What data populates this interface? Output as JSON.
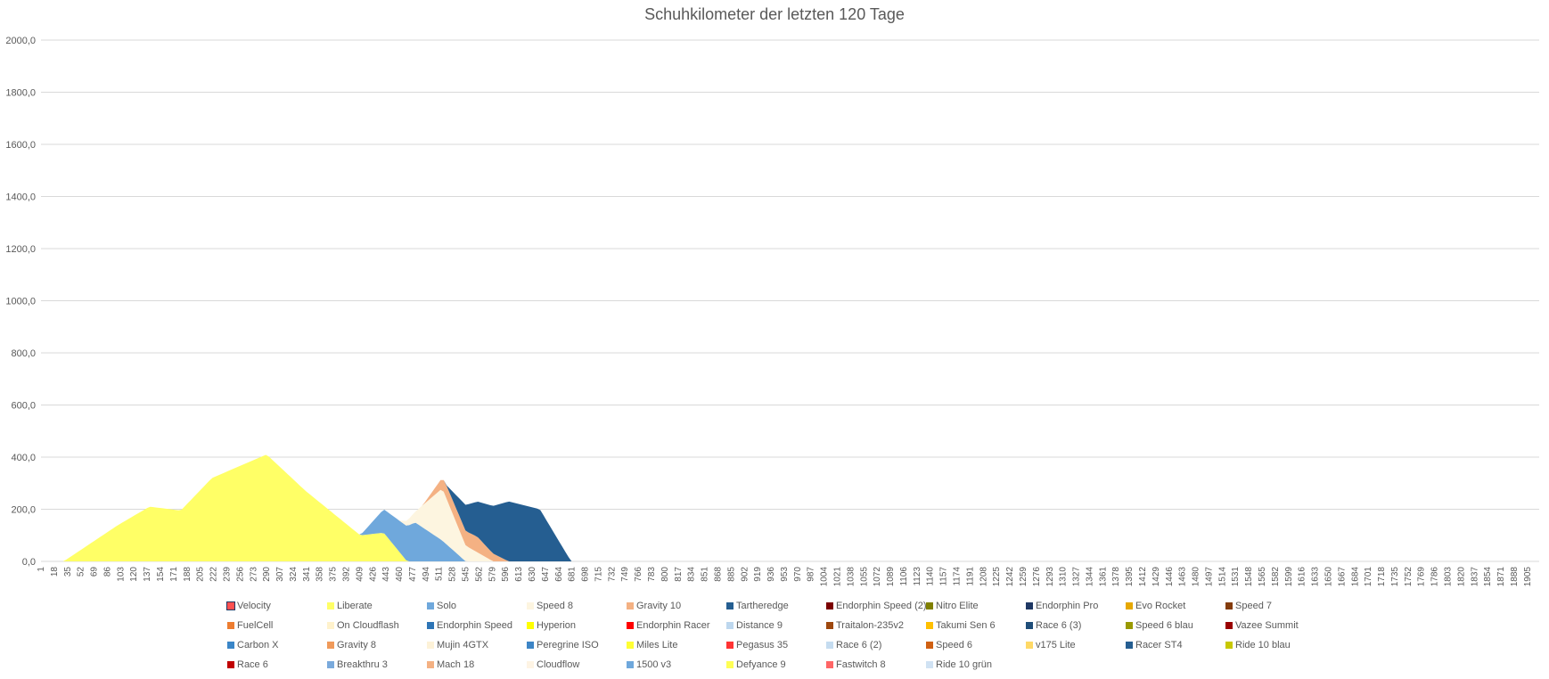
{
  "chart_data": {
    "type": "area",
    "stacked": true,
    "title": "Schuhkilometer der letzten 120 Tage",
    "xlabel": "",
    "ylabel": "",
    "ylim": [
      0,
      2000
    ],
    "yticks": [
      "0,0",
      "200,0",
      "400,0",
      "600,0",
      "800,0",
      "1000,0",
      "1200,0",
      "1400,0",
      "1600,0",
      "1800,0",
      "2000,0"
    ],
    "ytick_values": [
      0,
      200,
      400,
      600,
      800,
      1000,
      1200,
      1400,
      1600,
      1800,
      2000
    ],
    "xlim": [
      1,
      1920
    ],
    "x_tick_start": 1,
    "x_tick_step": 17,
    "x_tick_end": 1905,
    "grid": true,
    "legend_position": "bottom",
    "note": "Series values are approximate per-series contributions (km) at control days, stacked bottom-to-top in legend order.",
    "series": [
      {
        "name": "Velocity",
        "color": "#ff5050",
        "points": [
          [
            1,
            0
          ],
          [
            1920,
            0
          ]
        ]
      },
      {
        "name": "Liberate",
        "color": "#ffff66",
        "points": [
          [
            1,
            0
          ],
          [
            30,
            0
          ],
          [
            100,
            140
          ],
          [
            140,
            210
          ],
          [
            180,
            195
          ],
          [
            220,
            320
          ],
          [
            290,
            410
          ],
          [
            340,
            270
          ],
          [
            410,
            100
          ],
          [
            440,
            110
          ],
          [
            470,
            0
          ],
          [
            1920,
            0
          ]
        ]
      },
      {
        "name": "Solo",
        "color": "#6fa8dc",
        "points": [
          [
            1,
            0
          ],
          [
            410,
            0
          ],
          [
            440,
            90
          ],
          [
            480,
            150
          ],
          [
            515,
            80
          ],
          [
            545,
            0
          ],
          [
            1920,
            0
          ]
        ]
      },
      {
        "name": "Speed 8",
        "color": "#fdf5e0",
        "points": [
          [
            1,
            0
          ],
          [
            460,
            0
          ],
          [
            480,
            40
          ],
          [
            515,
            200
          ],
          [
            545,
            60
          ],
          [
            580,
            0
          ],
          [
            1920,
            0
          ]
        ]
      },
      {
        "name": "Gravity 10",
        "color": "#f4b183",
        "points": [
          [
            1,
            0
          ],
          [
            490,
            0
          ],
          [
            520,
            50
          ],
          [
            560,
            60
          ],
          [
            600,
            0
          ],
          [
            1920,
            0
          ]
        ]
      },
      {
        "name": "Tartheredge",
        "color": "#255e91",
        "points": [
          [
            1,
            0
          ],
          [
            520,
            0
          ],
          [
            545,
            100
          ],
          [
            600,
            230
          ],
          [
            640,
            200
          ],
          [
            680,
            0
          ],
          [
            1920,
            0
          ]
        ]
      },
      {
        "name": "Endorphin Speed (2)",
        "color": "#7b0000",
        "points": [
          [
            1,
            0
          ],
          [
            1920,
            0
          ]
        ]
      },
      {
        "name": "Nitro Elite",
        "color": "#808000",
        "points": [
          [
            1,
            0
          ],
          [
            1920,
            0
          ]
        ]
      },
      {
        "name": "Endorphin Pro",
        "color": "#1f3864",
        "points": [
          [
            1,
            0
          ],
          [
            1920,
            0
          ]
        ]
      },
      {
        "name": "Evo Rocket",
        "color": "#e6a800",
        "points": [
          [
            1,
            0
          ],
          [
            1920,
            0
          ]
        ]
      },
      {
        "name": "Speed 7",
        "color": "#843c0c",
        "points": [
          [
            1,
            0
          ],
          [
            1920,
            0
          ]
        ]
      },
      {
        "name": "FuelCell",
        "color": "#ed7d31",
        "points": [
          [
            1,
            0
          ],
          [
            1920,
            0
          ]
        ]
      },
      {
        "name": "On Cloudflash",
        "color": "#fff2cc",
        "points": [
          [
            1,
            0
          ],
          [
            1920,
            0
          ]
        ]
      },
      {
        "name": "Endorphin Speed",
        "color": "#2e75b6",
        "points": [
          [
            1,
            0
          ],
          [
            1920,
            0
          ]
        ]
      },
      {
        "name": "Hyperion",
        "color": "#ffff00",
        "points": [
          [
            1,
            0
          ],
          [
            1920,
            0
          ]
        ]
      },
      {
        "name": "Endorphin Racer",
        "color": "#ff0000",
        "points": [
          [
            1,
            0
          ],
          [
            1920,
            0
          ]
        ]
      },
      {
        "name": "Distance 9",
        "color": "#bdd7ee",
        "points": [
          [
            1,
            0
          ],
          [
            1920,
            0
          ]
        ]
      },
      {
        "name": "Traitalon-235v2",
        "color": "#9e480e",
        "points": [
          [
            1,
            0
          ],
          [
            1920,
            0
          ]
        ]
      },
      {
        "name": "Takumi Sen 6",
        "color": "#ffc000",
        "points": [
          [
            1,
            0
          ],
          [
            1920,
            0
          ]
        ]
      },
      {
        "name": "Race 6 (3)",
        "color": "#1f4e79",
        "points": [
          [
            1,
            0
          ],
          [
            1920,
            0
          ]
        ]
      },
      {
        "name": "Speed 6 blau",
        "color": "#999900",
        "points": [
          [
            1,
            0
          ],
          [
            1920,
            0
          ]
        ]
      },
      {
        "name": "Vazee Summit",
        "color": "#990000",
        "points": [
          [
            1,
            0
          ],
          [
            1920,
            0
          ]
        ]
      },
      {
        "name": "Carbon X",
        "color": "#3a86c8",
        "points": [
          [
            1,
            0
          ],
          [
            1920,
            0
          ]
        ]
      },
      {
        "name": "Gravity 8",
        "color": "#f09a5a",
        "points": [
          [
            1,
            0
          ],
          [
            1920,
            0
          ]
        ]
      },
      {
        "name": "Mujin 4GTX",
        "color": "#fdf2d8",
        "points": [
          [
            1,
            0
          ],
          [
            1920,
            0
          ]
        ]
      },
      {
        "name": "Peregrine ISO",
        "color": "#3d85c6",
        "points": [
          [
            1,
            0
          ],
          [
            1920,
            0
          ]
        ]
      },
      {
        "name": "Miles Lite",
        "color": "#ffff33",
        "points": [
          [
            1,
            0
          ],
          [
            1920,
            0
          ]
        ]
      },
      {
        "name": "Pegasus 35",
        "color": "#ff3333",
        "points": [
          [
            1,
            0
          ],
          [
            1920,
            0
          ]
        ]
      },
      {
        "name": "Race 6 (2)",
        "color": "#c5dcf0",
        "points": [
          [
            1,
            0
          ],
          [
            1920,
            0
          ]
        ]
      },
      {
        "name": "Speed 6",
        "color": "#d06012",
        "points": [
          [
            1,
            0
          ],
          [
            1920,
            0
          ]
        ]
      },
      {
        "name": "v175 Lite",
        "color": "#ffd966",
        "points": [
          [
            1,
            0
          ],
          [
            1920,
            0
          ]
        ]
      },
      {
        "name": "Racer ST4",
        "color": "#255e91",
        "points": [
          [
            1,
            0
          ],
          [
            1920,
            0
          ]
        ]
      },
      {
        "name": "Ride 10 blau",
        "color": "#c8c800",
        "points": [
          [
            1,
            0
          ],
          [
            1920,
            0
          ]
        ]
      },
      {
        "name": "Race 6",
        "color": "#c00000",
        "points": [
          [
            1,
            0
          ],
          [
            1920,
            0
          ]
        ]
      },
      {
        "name": "Breakthru 3",
        "color": "#7aaadc",
        "points": [
          [
            1,
            0
          ],
          [
            1920,
            0
          ]
        ]
      },
      {
        "name": "Mach 18",
        "color": "#f4b183",
        "points": [
          [
            1,
            0
          ],
          [
            1920,
            0
          ]
        ]
      },
      {
        "name": "Cloudflow",
        "color": "#fef4e4",
        "points": [
          [
            1,
            0
          ],
          [
            1920,
            0
          ]
        ]
      },
      {
        "name": "1500 v3",
        "color": "#6fa8dc",
        "points": [
          [
            1,
            0
          ],
          [
            1920,
            0
          ]
        ]
      },
      {
        "name": "Defyance 9",
        "color": "#ffff55",
        "points": [
          [
            1,
            0
          ],
          [
            1920,
            0
          ]
        ]
      },
      {
        "name": "Fastwitch 8",
        "color": "#ff6666",
        "points": [
          [
            1,
            0
          ],
          [
            1920,
            0
          ]
        ]
      },
      {
        "name": "Ride 10 grün",
        "color": "#d0e2f3",
        "points": [
          [
            1,
            0
          ],
          [
            1920,
            0
          ]
        ]
      }
    ]
  }
}
